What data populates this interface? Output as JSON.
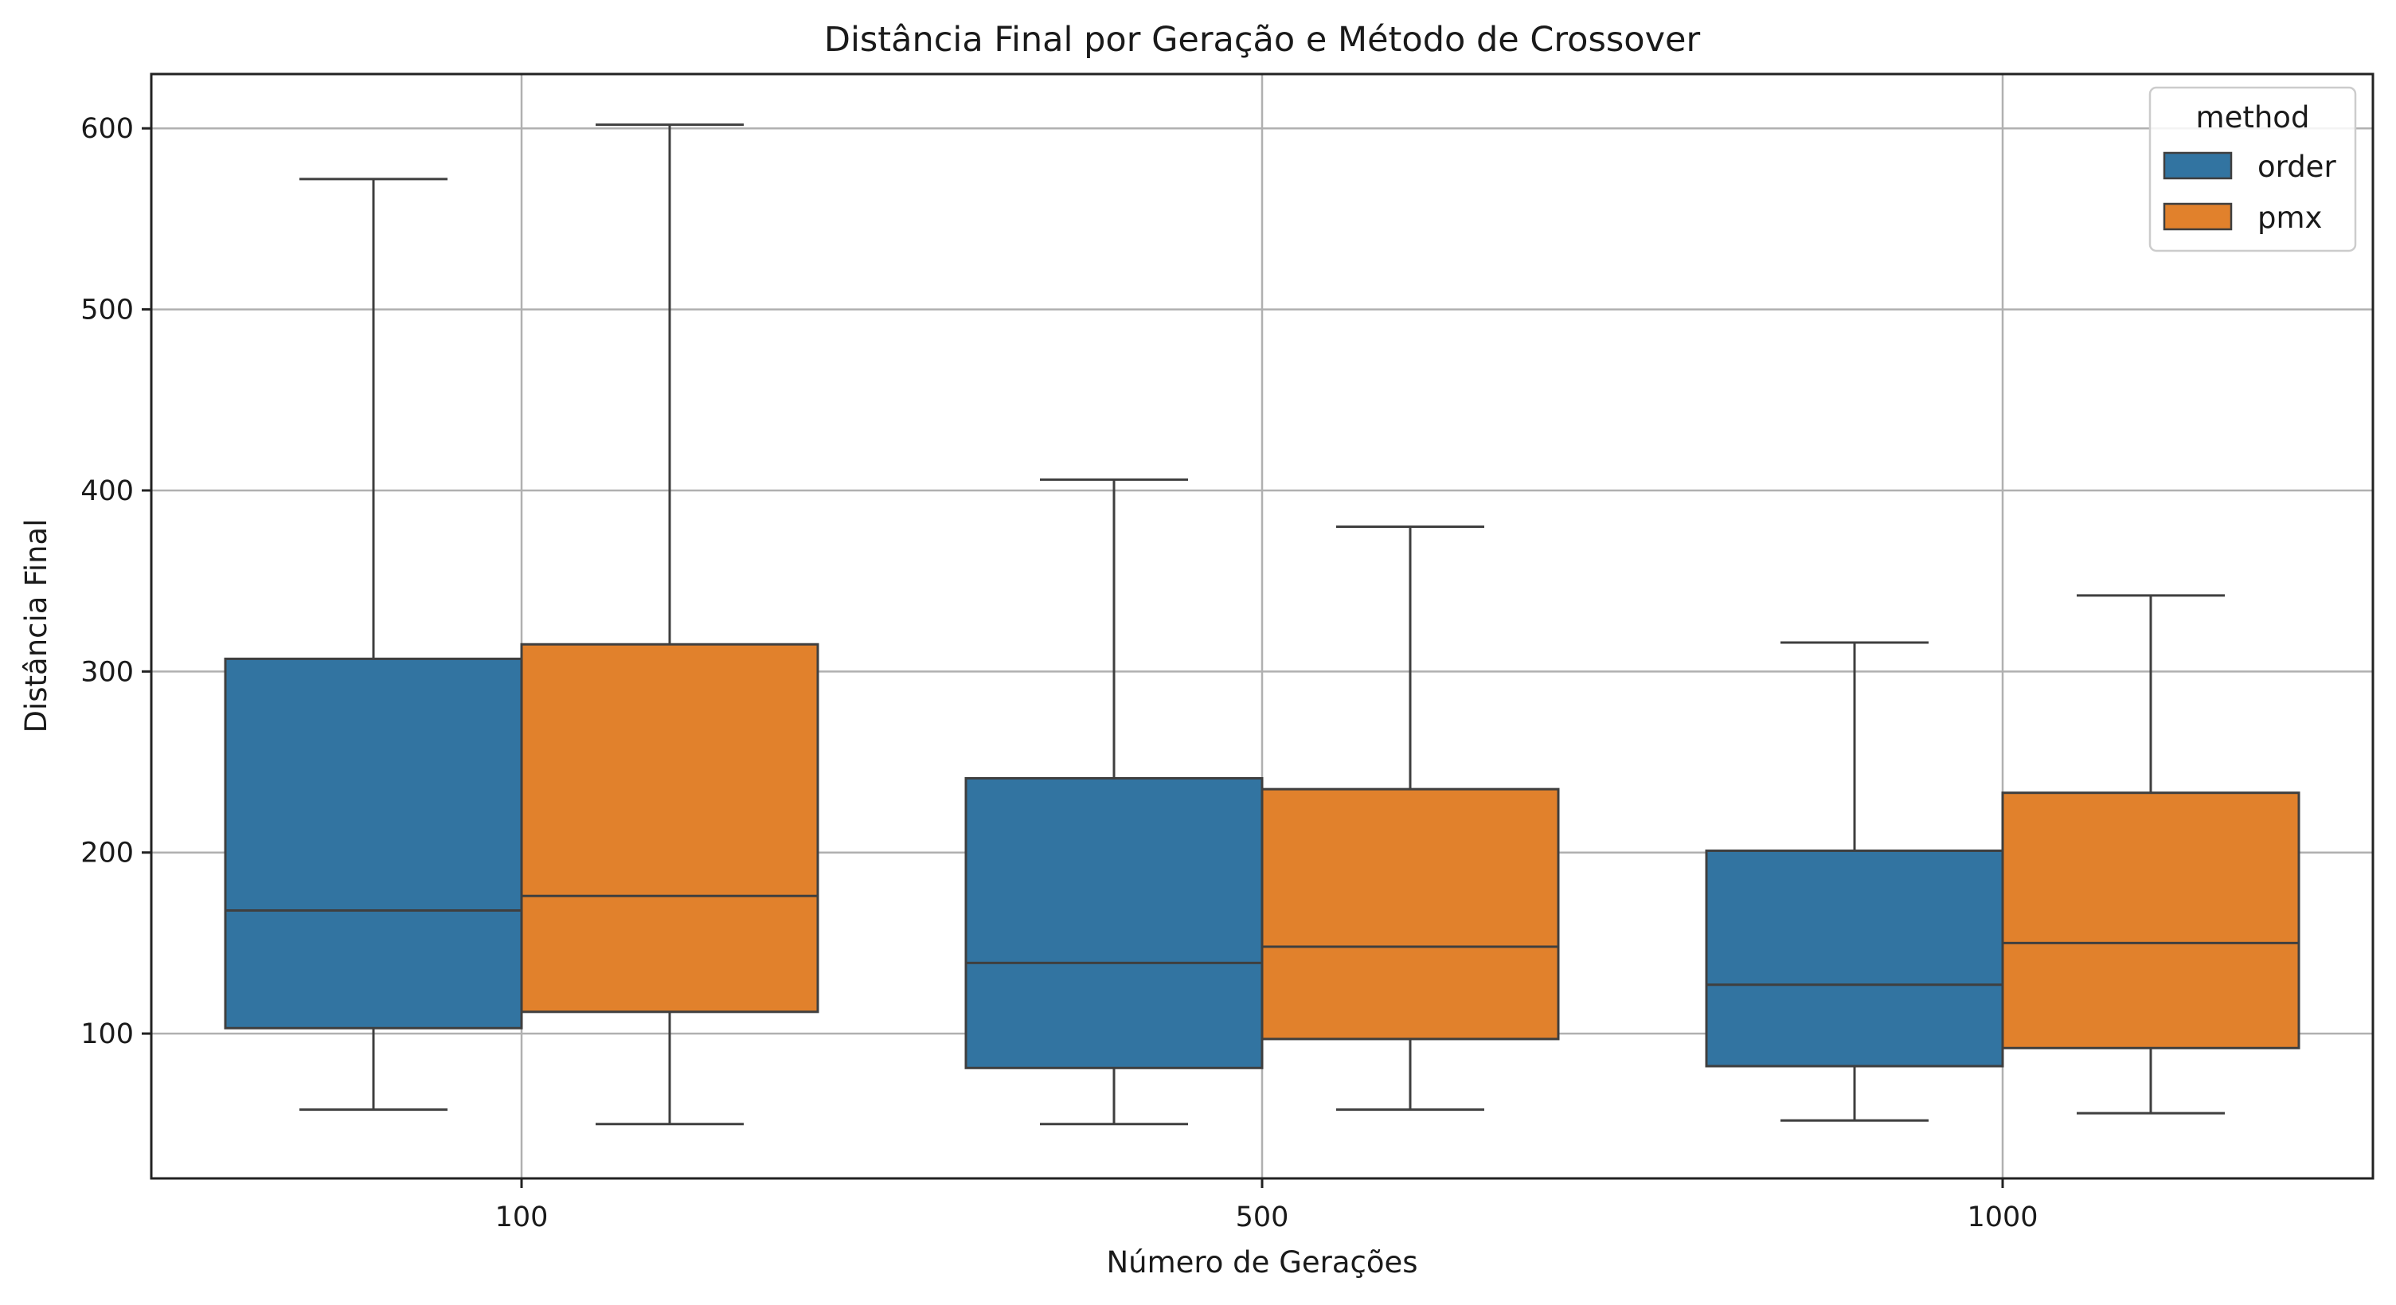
{
  "chart_data": {
    "type": "box",
    "title": "Distância Final por Geração e Método de Crossover",
    "xlabel": "Número de Gerações",
    "ylabel": "Distância Final",
    "categories": [
      "100",
      "500",
      "1000"
    ],
    "ylim": [
      20,
      630
    ],
    "yticks": [
      100,
      200,
      300,
      400,
      500,
      600
    ],
    "grid": true,
    "legend": {
      "title": "method",
      "position": "top-right"
    },
    "series": [
      {
        "name": "order",
        "color": "#3274a1",
        "boxes": [
          {
            "whisker_low": 58,
            "q1": 103,
            "median": 168,
            "q3": 307,
            "whisker_high": 572
          },
          {
            "whisker_low": 50,
            "q1": 81,
            "median": 139,
            "q3": 241,
            "whisker_high": 406
          },
          {
            "whisker_low": 52,
            "q1": 82,
            "median": 127,
            "q3": 201,
            "whisker_high": 316
          }
        ]
      },
      {
        "name": "pmx",
        "color": "#e1812c",
        "boxes": [
          {
            "whisker_low": 50,
            "q1": 112,
            "median": 176,
            "q3": 315,
            "whisker_high": 602
          },
          {
            "whisker_low": 58,
            "q1": 97,
            "median": 148,
            "q3": 235,
            "whisker_high": 380
          },
          {
            "whisker_low": 56,
            "q1": 92,
            "median": 150,
            "q3": 233,
            "whisker_high": 342
          }
        ]
      }
    ]
  }
}
